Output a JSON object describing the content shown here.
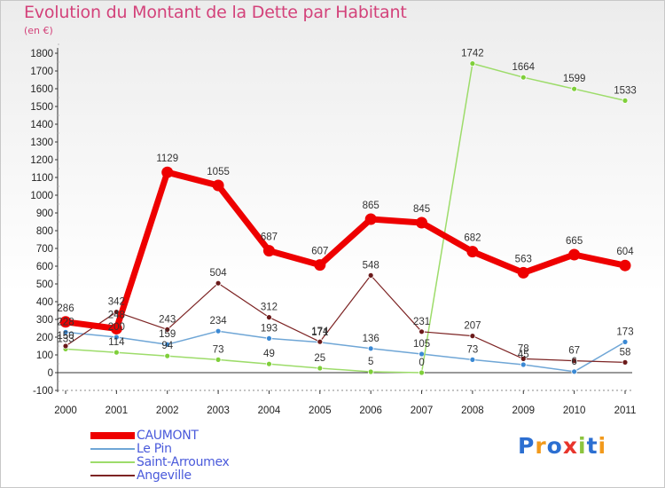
{
  "title": "Evolution du Montant de la Dette par Habitant",
  "subtitle": "(en €)",
  "logo": {
    "text": "Proxiti",
    "letters": [
      {
        "ch": "P",
        "color": "#2c6fd1"
      },
      {
        "ch": "r",
        "color": "#f29a1c"
      },
      {
        "ch": "o",
        "color": "#2c6fd1"
      },
      {
        "ch": "x",
        "color": "#e8352c"
      },
      {
        "ch": "i",
        "color": "#8cc43e"
      },
      {
        "ch": "t",
        "color": "#2c6fd1"
      },
      {
        "ch": "i",
        "color": "#f29a1c"
      }
    ]
  },
  "chart_data": {
    "type": "line",
    "categories": [
      "2000",
      "2001",
      "2002",
      "2003",
      "2004",
      "2005",
      "2006",
      "2007",
      "2008",
      "2009",
      "2010",
      "2011"
    ],
    "ylim": [
      -100,
      1800
    ],
    "yticks": [
      "-100",
      "0",
      "100",
      "200",
      "300",
      "400",
      "500",
      "600",
      "700",
      "800",
      "900",
      "1000",
      "1100",
      "1200",
      "1300",
      "1400",
      "1500",
      "1600",
      "1700",
      "1800"
    ],
    "grid": false,
    "legend_position": "bottom-left",
    "series": [
      {
        "name": "CAUMONT",
        "color": "#ee0000",
        "width": 7,
        "marker": 6.5,
        "values": [
          286,
          248,
          1129,
          1055,
          687,
          607,
          865,
          845,
          682,
          563,
          665,
          604
        ],
        "labels": [
          "286",
          "248",
          "1129",
          "1055",
          "687",
          "607",
          "865",
          "845",
          "682",
          "563",
          "665",
          "604"
        ],
        "label_color": "#333333"
      },
      {
        "name": "Le Pin",
        "color": "#6fa6d6",
        "width": 1.5,
        "marker": 3,
        "values": [
          228,
          200,
          159,
          234,
          193,
          171,
          136,
          105,
          73,
          45,
          6,
          173
        ],
        "labels": [
          "228",
          "200",
          "159",
          "234",
          "193",
          "171",
          "136",
          "105",
          "73",
          "45",
          "6",
          "173"
        ],
        "label_color": "#333333",
        "marker_fill": "#3b89d4"
      },
      {
        "name": "Saint-Arroumex",
        "color": "#9ddc6a",
        "width": 1.5,
        "marker": 3,
        "values": [
          133,
          114,
          94,
          73,
          49,
          25,
          5,
          0,
          1742,
          1664,
          1599,
          1533
        ],
        "labels": [
          "133",
          "114",
          "94",
          "73",
          "49",
          "25",
          "5",
          "0",
          "1742",
          "1664",
          "1599",
          "1533"
        ],
        "label_color": "#333333",
        "marker_fill": "#7fcf3a"
      },
      {
        "name": "Angeville",
        "color": "#7d2424",
        "width": 1.2,
        "marker": 3,
        "values": [
          150,
          342,
          243,
          504,
          312,
          174,
          548,
          231,
          207,
          78,
          67,
          58
        ],
        "labels": [
          "150",
          "342",
          "243",
          "504",
          "312",
          "174",
          "548",
          "231",
          "207",
          "78",
          "67",
          "58"
        ],
        "label_color": "#333333",
        "marker_fill": "#6b1a1a"
      }
    ]
  }
}
